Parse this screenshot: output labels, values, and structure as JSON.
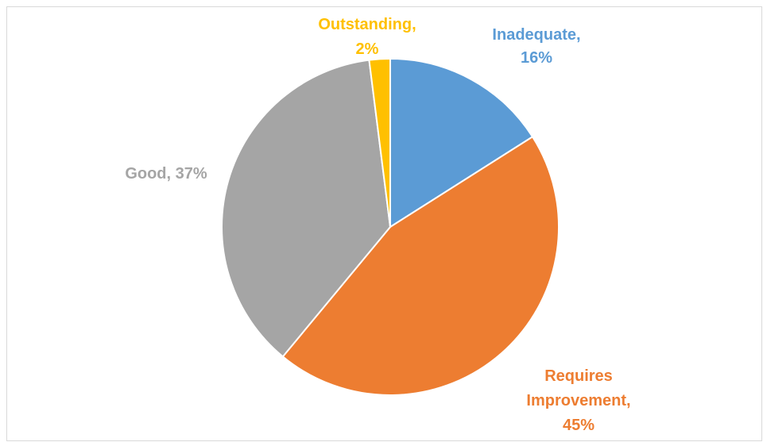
{
  "chart_data": {
    "type": "pie",
    "slices": [
      {
        "label": "Inadequate",
        "value": 16,
        "percent_label": "16%",
        "color": "#5b9bd5"
      },
      {
        "label": "Requires Improvement",
        "value": 45,
        "percent_label": "45%",
        "color": "#ed7d31"
      },
      {
        "label": "Good",
        "value": 37,
        "percent_label": "37%",
        "color": "#a5a5a5"
      },
      {
        "label": "Outstanding",
        "value": 2,
        "percent_label": "2%",
        "color": "#ffc000"
      }
    ],
    "start_angle": "12 o'clock, clockwise",
    "legend": "none",
    "data_labels": "category name and percentage, outside end"
  },
  "labels": {
    "inadequate_line1": "Inadequate,",
    "inadequate_line2": "16%",
    "requires_line1": "Requires",
    "requires_line2": "Improvement,",
    "requires_line3": "45%",
    "good_line1": "Good, 37%",
    "outstanding_line1": "Outstanding,",
    "outstanding_line2": "2%"
  }
}
